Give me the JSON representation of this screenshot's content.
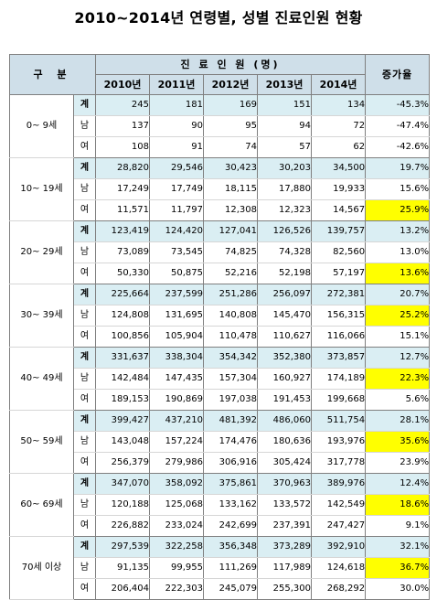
{
  "title": "2010~2014년 연령별, 성별 진료인원 현황",
  "header": {
    "category_label": "구 분",
    "group_label": "진 료 인 원 (명)",
    "rate_label": "증가율",
    "years": [
      "2010년",
      "2011년",
      "2012년",
      "2013년",
      "2014년"
    ]
  },
  "highlight_color": "#ffff00",
  "total_row_color": "#daeef3",
  "groups": [
    {
      "age": "0~ 9세",
      "rows": [
        {
          "gender": "계",
          "values": [
            "245",
            "181",
            "169",
            "151",
            "134"
          ],
          "rate": "-45.3%",
          "highlight": false
        },
        {
          "gender": "남",
          "values": [
            "137",
            "90",
            "95",
            "94",
            "72"
          ],
          "rate": "-47.4%",
          "highlight": false
        },
        {
          "gender": "여",
          "values": [
            "108",
            "91",
            "74",
            "57",
            "62"
          ],
          "rate": "-42.6%",
          "highlight": false
        }
      ]
    },
    {
      "age": "10~ 19세",
      "rows": [
        {
          "gender": "계",
          "values": [
            "28,820",
            "29,546",
            "30,423",
            "30,203",
            "34,500"
          ],
          "rate": "19.7%",
          "highlight": false
        },
        {
          "gender": "남",
          "values": [
            "17,249",
            "17,749",
            "18,115",
            "17,880",
            "19,933"
          ],
          "rate": "15.6%",
          "highlight": false
        },
        {
          "gender": "여",
          "values": [
            "11,571",
            "11,797",
            "12,308",
            "12,323",
            "14,567"
          ],
          "rate": "25.9%",
          "highlight": true
        }
      ]
    },
    {
      "age": "20~ 29세",
      "rows": [
        {
          "gender": "계",
          "values": [
            "123,419",
            "124,420",
            "127,041",
            "126,526",
            "139,757"
          ],
          "rate": "13.2%",
          "highlight": false
        },
        {
          "gender": "남",
          "values": [
            "73,089",
            "73,545",
            "74,825",
            "74,328",
            "82,560"
          ],
          "rate": "13.0%",
          "highlight": false
        },
        {
          "gender": "여",
          "values": [
            "50,330",
            "50,875",
            "52,216",
            "52,198",
            "57,197"
          ],
          "rate": "13.6%",
          "highlight": true
        }
      ]
    },
    {
      "age": "30~ 39세",
      "rows": [
        {
          "gender": "계",
          "values": [
            "225,664",
            "237,599",
            "251,286",
            "256,097",
            "272,381"
          ],
          "rate": "20.7%",
          "highlight": false
        },
        {
          "gender": "남",
          "values": [
            "124,808",
            "131,695",
            "140,808",
            "145,470",
            "156,315"
          ],
          "rate": "25.2%",
          "highlight": true
        },
        {
          "gender": "여",
          "values": [
            "100,856",
            "105,904",
            "110,478",
            "110,627",
            "116,066"
          ],
          "rate": "15.1%",
          "highlight": false
        }
      ]
    },
    {
      "age": "40~ 49세",
      "rows": [
        {
          "gender": "계",
          "values": [
            "331,637",
            "338,304",
            "354,342",
            "352,380",
            "373,857"
          ],
          "rate": "12.7%",
          "highlight": false
        },
        {
          "gender": "남",
          "values": [
            "142,484",
            "147,435",
            "157,304",
            "160,927",
            "174,189"
          ],
          "rate": "22.3%",
          "highlight": true
        },
        {
          "gender": "여",
          "values": [
            "189,153",
            "190,869",
            "197,038",
            "191,453",
            "199,668"
          ],
          "rate": "5.6%",
          "highlight": false
        }
      ]
    },
    {
      "age": "50~ 59세",
      "rows": [
        {
          "gender": "계",
          "values": [
            "399,427",
            "437,210",
            "481,392",
            "486,060",
            "511,754"
          ],
          "rate": "28.1%",
          "highlight": false
        },
        {
          "gender": "남",
          "values": [
            "143,048",
            "157,224",
            "174,476",
            "180,636",
            "193,976"
          ],
          "rate": "35.6%",
          "highlight": true
        },
        {
          "gender": "여",
          "values": [
            "256,379",
            "279,986",
            "306,916",
            "305,424",
            "317,778"
          ],
          "rate": "23.9%",
          "highlight": false
        }
      ]
    },
    {
      "age": "60~ 69세",
      "rows": [
        {
          "gender": "계",
          "values": [
            "347,070",
            "358,092",
            "375,861",
            "370,963",
            "389,976"
          ],
          "rate": "12.4%",
          "highlight": false
        },
        {
          "gender": "남",
          "values": [
            "120,188",
            "125,068",
            "133,162",
            "133,572",
            "142,549"
          ],
          "rate": "18.6%",
          "highlight": true
        },
        {
          "gender": "여",
          "values": [
            "226,882",
            "233,024",
            "242,699",
            "237,391",
            "247,427"
          ],
          "rate": "9.1%",
          "highlight": false
        }
      ]
    },
    {
      "age": "70세 이상",
      "rows": [
        {
          "gender": "계",
          "values": [
            "297,539",
            "322,258",
            "356,348",
            "373,289",
            "392,910"
          ],
          "rate": "32.1%",
          "highlight": false
        },
        {
          "gender": "남",
          "values": [
            "91,135",
            "99,955",
            "111,269",
            "117,989",
            "124,618"
          ],
          "rate": "36.7%",
          "highlight": true
        },
        {
          "gender": "여",
          "values": [
            "206,404",
            "222,303",
            "245,079",
            "255,300",
            "268,292"
          ],
          "rate": "30.0%",
          "highlight": false
        }
      ]
    }
  ]
}
